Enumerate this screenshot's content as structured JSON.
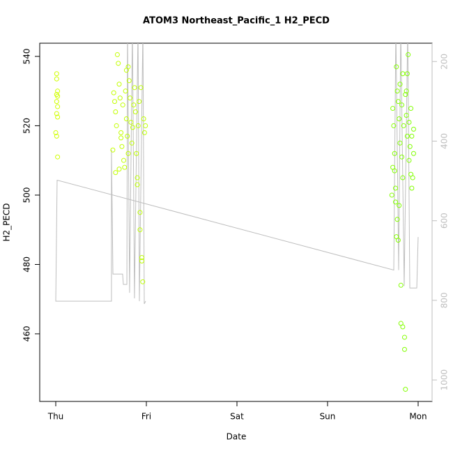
{
  "chart_data": {
    "type": "scatter",
    "title": "ATOM3 Northeast_Pacific_1 H2_PECD",
    "x_label": "Date",
    "y_label": "H2_PECD",
    "xlim": [
      -0.177,
      4.154
    ],
    "xticks": [
      {
        "value": 0,
        "label": "Thu"
      },
      {
        "value": 1,
        "label": "Fri"
      },
      {
        "value": 2,
        "label": "Sat"
      },
      {
        "value": 3,
        "label": "Sun"
      },
      {
        "value": 4,
        "label": "Mon"
      }
    ],
    "ylim": [
      440.5,
      543.8
    ],
    "yticks": [
      460,
      480,
      500,
      520,
      540
    ],
    "y2lim": [
      1054,
      154
    ],
    "y2ticks": [
      200,
      400,
      600,
      800,
      1000
    ],
    "series": [
      {
        "type": "scatter",
        "color_gradient": [
          "#d4ff00",
          "#7cff00"
        ],
        "x": [
          0.01,
          0.02,
          0.01,
          0.02,
          0.01,
          0.02,
          0.01,
          0.02,
          0.0,
          0.01,
          0.02,
          0.01,
          0.64,
          0.65,
          0.66,
          0.67,
          0.68,
          0.69,
          0.7,
          0.71,
          0.72,
          0.72,
          0.73,
          0.74,
          0.75,
          0.76,
          0.77,
          0.78,
          0.78,
          0.79,
          0.8,
          0.8,
          0.81,
          0.82,
          0.83,
          0.84,
          0.85,
          0.86,
          0.87,
          0.88,
          0.89,
          0.9,
          0.9,
          0.91,
          0.92,
          0.93,
          0.93,
          0.94,
          0.95,
          0.95,
          0.96,
          0.97,
          0.98,
          0.99,
          0.63,
          0.66,
          0.7,
          3.72,
          3.73,
          3.74,
          3.74,
          3.75,
          3.75,
          3.76,
          3.77,
          3.77,
          3.78,
          3.78,
          3.79,
          3.8,
          3.8,
          3.81,
          3.81,
          3.82,
          3.82,
          3.83,
          3.83,
          3.84,
          3.85,
          3.85,
          3.86,
          3.86,
          3.87,
          3.88,
          3.88,
          3.89,
          3.9,
          3.9,
          3.91,
          3.92,
          3.92,
          3.93,
          3.94,
          3.95,
          3.95,
          3.72,
          3.71,
          3.76,
          3.79,
          3.83,
          3.87,
          3.93
        ],
        "values": [
          533.5,
          530,
          529,
          528.5,
          527,
          525.5,
          523.5,
          522.5,
          518,
          517,
          511,
          535,
          529.5,
          527,
          524,
          520,
          540.5,
          538,
          532,
          528,
          518,
          516.5,
          514,
          526,
          510,
          508,
          530,
          536,
          522,
          517,
          512,
          537,
          533,
          528,
          521,
          515,
          519.5,
          526,
          531,
          524,
          512,
          505,
          503,
          520,
          527,
          495,
          490,
          531,
          482,
          481,
          475,
          522,
          518,
          520,
          513,
          506.5,
          507.5,
          525,
          520,
          512,
          507,
          502,
          498,
          537,
          530,
          493,
          527,
          487,
          522,
          515,
          532,
          474,
          463,
          511,
          526,
          505,
          462,
          520,
          459,
          455.5,
          444,
          529,
          523,
          517,
          535,
          540.5,
          510,
          521,
          514,
          506,
          525,
          517,
          505,
          512,
          519,
          508,
          500,
          488,
          497,
          535,
          530,
          502
        ]
      },
      {
        "type": "line",
        "axis": "y2",
        "color": "#bebebe",
        "x": [
          4.0,
          3.985,
          3.908,
          3.885,
          3.846,
          3.808,
          3.785,
          3.754,
          3.731,
          0.015,
          0.0,
          0.615,
          0.615,
          0.631,
          0.738,
          0.746,
          0.785,
          0.792,
          0.815,
          0.846,
          0.869,
          0.908,
          0.923,
          0.962,
          0.977,
          0.992
        ],
        "values": [
          641,
          769,
          769,
          116,
          764,
          116,
          724,
          116,
          724,
          498,
          802,
          802,
          422,
          734,
          734,
          760,
          760,
          116,
          781,
          116,
          795,
          116,
          802,
          116,
          809,
          802
        ]
      }
    ]
  }
}
